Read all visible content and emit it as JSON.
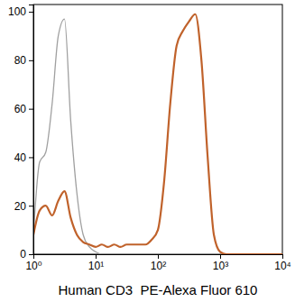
{
  "chart_data": {
    "type": "line",
    "x_label": "Human CD3  PE-Alexa Fluor 610",
    "log": "x",
    "x": [
      1,
      1.26,
      1.58,
      2,
      2.51,
      3.16,
      3.98,
      5.01,
      6.31,
      7.94,
      10,
      12.6,
      15.8,
      20,
      25.1,
      31.6,
      39.8,
      50.1,
      63.1,
      79.4,
      100,
      126,
      158,
      200,
      251,
      316,
      398,
      501,
      631,
      794,
      1000,
      1259,
      1585,
      10000
    ],
    "series": [
      {
        "color": "#a0a0a0",
        "values": [
          8,
          38,
          42,
          62,
          90,
          97,
          55,
          25,
          8,
          3,
          1,
          0,
          0,
          0,
          0,
          0,
          0,
          0,
          0,
          0,
          0,
          0,
          0,
          0,
          0,
          0,
          0,
          0,
          0,
          0,
          0,
          0,
          0,
          0
        ]
      },
      {
        "color": "#c0622b",
        "values": [
          8,
          18,
          20,
          16,
          22,
          26,
          15,
          8,
          5,
          4,
          3,
          4,
          3,
          4,
          3,
          4,
          4,
          4,
          4,
          6,
          10,
          30,
          62,
          86,
          92,
          96,
          99,
          80,
          40,
          8,
          1,
          0,
          0,
          0
        ]
      }
    ],
    "xlim": [
      1,
      10000
    ],
    "xticks": [
      {
        "value": 1,
        "label": "10⁰"
      },
      {
        "value": 10,
        "label": "10¹"
      },
      {
        "value": 100,
        "label": "10²"
      },
      {
        "value": 1000,
        "label": "10³"
      },
      {
        "value": 10000,
        "label": "10⁴"
      }
    ],
    "ylim": [
      0,
      103
    ],
    "yticks": [
      0,
      20,
      40,
      60,
      80,
      100
    ]
  }
}
